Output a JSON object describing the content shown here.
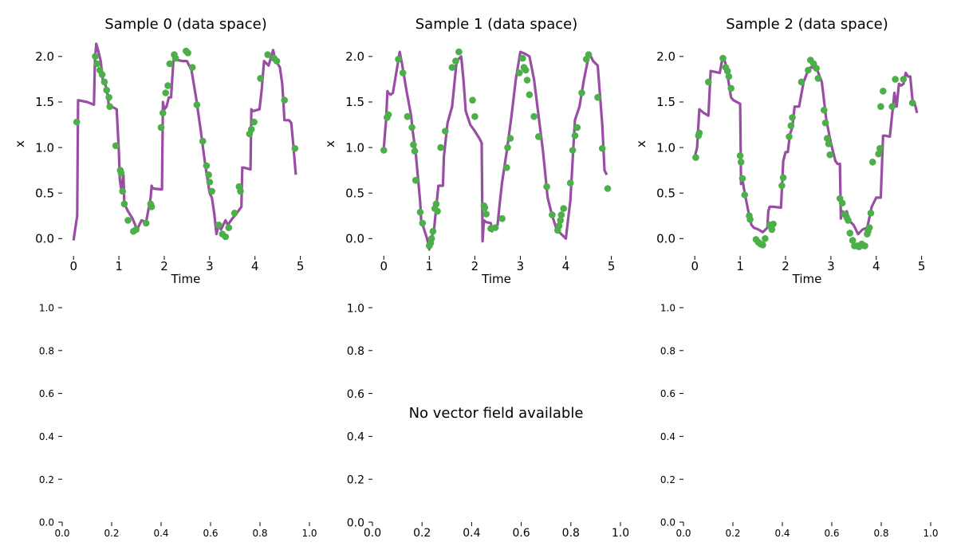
{
  "figure": {
    "no_vector_field_text": "No vector field available"
  },
  "colors": {
    "line": "#984ea3",
    "points": "#4daf4a",
    "axis": "#000000"
  },
  "chart_data": [
    {
      "type": "line",
      "title": "Sample 0 (data space)",
      "xlabel": "Time",
      "ylabel": "x",
      "xlim": [
        -0.25,
        5.2
      ],
      "ylim": [
        -0.12,
        2.2
      ],
      "xticks": [
        0,
        1,
        2,
        3,
        4,
        5
      ],
      "xtick_labels": [
        "0",
        "1",
        "2",
        "3",
        "4",
        "5"
      ],
      "yticks": [
        0,
        0.5,
        1,
        1.5,
        2
      ],
      "ytick_labels": [
        "0.0",
        "0.5",
        "1.0",
        "1.5",
        "2.0"
      ],
      "grid": false,
      "series": [
        {
          "kind": "line",
          "x": [
            0,
            0.08,
            0.1,
            0.3,
            0.45,
            0.47,
            0.5,
            0.55,
            0.6,
            0.65,
            0.7,
            0.75,
            0.78,
            0.8,
            0.95,
            1.0,
            1.02,
            1.05,
            1.1,
            1.12,
            1.2,
            1.3,
            1.4,
            1.5,
            1.6,
            1.7,
            1.72,
            1.75,
            1.95,
            1.97,
            2.0,
            2.05,
            2.1,
            2.15,
            2.2,
            2.25,
            2.3,
            2.4,
            2.5,
            2.6,
            2.7,
            2.8,
            2.9,
            3.0,
            3.05,
            3.1,
            3.15,
            3.2,
            3.25,
            3.3,
            3.35,
            3.4,
            3.5,
            3.6,
            3.7,
            3.72,
            3.75,
            3.9,
            3.92,
            3.95,
            4.1,
            4.15,
            4.2,
            4.3,
            4.4,
            4.45,
            4.5,
            4.55,
            4.6,
            4.62,
            4.65,
            4.75,
            4.8,
            4.85,
            4.9
          ],
          "y": [
            -0.02,
            0.25,
            1.52,
            1.5,
            1.47,
            1.95,
            2.14,
            2.05,
            1.95,
            1.72,
            1.7,
            1.58,
            1.45,
            1.46,
            1.42,
            0.95,
            0.65,
            0.55,
            0.7,
            0.38,
            0.3,
            0.22,
            0.1,
            0.2,
            0.18,
            0.45,
            0.58,
            0.55,
            0.54,
            1.5,
            1.42,
            1.45,
            1.55,
            1.55,
            1.95,
            1.97,
            1.96,
            1.95,
            1.95,
            1.85,
            1.55,
            1.2,
            0.82,
            0.5,
            0.45,
            0.28,
            0.05,
            0.15,
            0.1,
            0.15,
            0.2,
            0.15,
            0.22,
            0.28,
            0.35,
            0.78,
            0.78,
            0.76,
            1.42,
            1.4,
            1.42,
            1.65,
            1.95,
            1.9,
            2.07,
            1.95,
            1.92,
            1.88,
            1.7,
            1.55,
            1.3,
            1.3,
            1.27,
            1.0,
            0.7
          ]
        },
        {
          "kind": "scatter",
          "x": [
            0.07,
            0.48,
            0.52,
            0.58,
            0.63,
            0.68,
            0.73,
            0.78,
            0.8,
            0.93,
            1.03,
            1.05,
            1.08,
            1.12,
            1.2,
            1.32,
            1.38,
            1.6,
            1.7,
            1.72,
            1.93,
            1.97,
            2.03,
            2.08,
            2.12,
            2.22,
            2.25,
            2.48,
            2.52,
            2.62,
            2.72,
            2.85,
            2.93,
            2.98,
            3.0,
            3.05,
            3.2,
            3.28,
            3.35,
            3.42,
            3.55,
            3.65,
            3.68,
            3.88,
            3.92,
            3.98,
            4.12,
            4.28,
            4.42,
            4.48,
            4.65,
            4.88
          ],
          "y": [
            1.28,
            2.0,
            1.92,
            1.85,
            1.8,
            1.72,
            1.63,
            1.55,
            1.45,
            1.02,
            0.75,
            0.72,
            0.52,
            0.38,
            0.2,
            0.08,
            0.1,
            0.17,
            0.38,
            0.35,
            1.22,
            1.38,
            1.6,
            1.68,
            1.92,
            2.02,
            1.98,
            2.06,
            2.04,
            1.88,
            1.47,
            1.07,
            0.8,
            0.7,
            0.62,
            0.52,
            0.15,
            0.05,
            0.02,
            0.12,
            0.28,
            0.57,
            0.52,
            1.15,
            1.2,
            1.28,
            1.76,
            2.02,
            1.98,
            1.95,
            1.52,
            0.99
          ]
        }
      ]
    },
    {
      "type": "line",
      "title": "Sample 1 (data space)",
      "xlabel": "Time",
      "ylabel": "x",
      "xlim": [
        -0.25,
        5.2
      ],
      "ylim": [
        -0.12,
        2.2
      ],
      "xticks": [
        0,
        1,
        2,
        3,
        4,
        5
      ],
      "xtick_labels": [
        "0",
        "1",
        "2",
        "3",
        "4",
        "5"
      ],
      "yticks": [
        0,
        0.5,
        1,
        1.5,
        2
      ],
      "ytick_labels": [
        "0.0",
        "0.5",
        "1.0",
        "1.5",
        "2.0"
      ],
      "grid": false,
      "series": [
        {
          "kind": "line",
          "x": [
            0,
            0.05,
            0.08,
            0.1,
            0.15,
            0.2,
            0.35,
            0.38,
            0.4,
            0.5,
            0.6,
            0.63,
            0.7,
            0.8,
            0.82,
            0.95,
            1.0,
            1.02,
            1.05,
            1.1,
            1.2,
            1.3,
            1.32,
            1.4,
            1.5,
            1.6,
            1.7,
            1.75,
            1.8,
            1.9,
            2.0,
            2.1,
            2.15,
            2.17,
            2.2,
            2.25,
            2.35,
            2.38,
            2.4,
            2.5,
            2.55,
            2.6,
            2.7,
            2.8,
            2.9,
            3.0,
            3.1,
            3.2,
            3.3,
            3.4,
            3.5,
            3.6,
            3.7,
            3.8,
            3.9,
            4.0,
            4.1,
            4.2,
            4.3,
            4.4,
            4.5,
            4.55,
            4.6,
            4.7,
            4.8,
            4.85,
            4.9
          ],
          "y": [
            1.0,
            1.3,
            1.62,
            1.6,
            1.58,
            1.6,
            2.05,
            1.97,
            1.92,
            1.62,
            1.35,
            1.2,
            0.95,
            0.4,
            0.2,
            0.0,
            -0.12,
            0.0,
            0.02,
            0.08,
            0.58,
            0.58,
            0.9,
            1.27,
            1.45,
            1.95,
            2.0,
            1.75,
            1.4,
            1.25,
            1.18,
            1.1,
            1.05,
            -0.03,
            0.2,
            0.18,
            0.17,
            0.08,
            0.12,
            0.15,
            0.4,
            0.62,
            0.95,
            1.32,
            1.75,
            2.05,
            2.03,
            2.0,
            1.75,
            1.35,
            0.95,
            0.45,
            0.25,
            0.1,
            0.05,
            0.0,
            0.42,
            1.3,
            1.45,
            1.75,
            2.0,
            2.0,
            1.95,
            1.9,
            1.25,
            0.75,
            0.7
          ]
        },
        {
          "kind": "scatter",
          "x": [
            0.0,
            0.07,
            0.1,
            0.32,
            0.42,
            0.52,
            0.62,
            0.65,
            0.68,
            0.7,
            0.8,
            0.85,
            1.0,
            1.03,
            1.05,
            1.08,
            1.12,
            1.15,
            1.18,
            1.25,
            1.35,
            1.5,
            1.58,
            1.65,
            1.95,
            2.0,
            2.2,
            2.22,
            2.25,
            2.35,
            2.45,
            2.6,
            2.7,
            2.72,
            2.78,
            2.98,
            3.05,
            3.08,
            3.12,
            3.15,
            3.2,
            3.3,
            3.4,
            3.58,
            3.7,
            3.82,
            3.85,
            3.88,
            3.9,
            3.95,
            4.1,
            4.15,
            4.2,
            4.25,
            4.35,
            4.45,
            4.5,
            4.7,
            4.8,
            4.92
          ],
          "y": [
            0.97,
            1.33,
            1.36,
            1.97,
            1.82,
            1.34,
            1.22,
            1.03,
            0.96,
            0.64,
            0.29,
            0.17,
            -0.08,
            -0.05,
            0.0,
            0.08,
            0.33,
            0.38,
            0.3,
            1.0,
            1.18,
            1.88,
            1.95,
            2.05,
            1.52,
            1.34,
            0.36,
            0.34,
            0.27,
            0.11,
            0.12,
            0.22,
            0.78,
            1.0,
            1.1,
            1.82,
            1.98,
            1.88,
            1.85,
            1.74,
            1.58,
            1.34,
            1.12,
            0.57,
            0.26,
            0.09,
            0.14,
            0.2,
            0.26,
            0.33,
            0.61,
            0.97,
            1.13,
            1.22,
            1.6,
            1.97,
            2.02,
            1.55,
            0.99,
            0.55
          ]
        }
      ]
    },
    {
      "type": "line",
      "title": "Sample 2 (data space)",
      "xlabel": "Time",
      "ylabel": "x",
      "xlim": [
        -0.25,
        5.2
      ],
      "ylim": [
        -0.12,
        2.2
      ],
      "xticks": [
        0,
        1,
        2,
        3,
        4,
        5
      ],
      "xtick_labels": [
        "0",
        "1",
        "2",
        "3",
        "4",
        "5"
      ],
      "yticks": [
        0,
        0.5,
        1,
        1.5,
        2
      ],
      "ytick_labels": [
        "0.0",
        "0.5",
        "1.0",
        "1.5",
        "2.0"
      ],
      "grid": false,
      "series": [
        {
          "kind": "line",
          "x": [
            0.0,
            0.05,
            0.1,
            0.2,
            0.3,
            0.35,
            0.55,
            0.6,
            0.65,
            0.7,
            0.75,
            0.8,
            0.85,
            1.0,
            1.02,
            1.05,
            1.1,
            1.12,
            1.2,
            1.25,
            1.3,
            1.4,
            1.5,
            1.6,
            1.62,
            1.65,
            1.7,
            1.72,
            1.9,
            1.95,
            2.0,
            2.05,
            2.1,
            2.15,
            2.2,
            2.3,
            2.4,
            2.5,
            2.55,
            2.6,
            2.7,
            2.8,
            2.9,
            3.0,
            3.05,
            3.1,
            3.15,
            3.2,
            3.22,
            3.25,
            3.3,
            3.35,
            3.4,
            3.5,
            3.6,
            3.7,
            3.8,
            3.9,
            3.95,
            4.0,
            4.05,
            4.1,
            4.15,
            4.2,
            4.3,
            4.4,
            4.45,
            4.5,
            4.55,
            4.6,
            4.65,
            4.7,
            4.75,
            4.8,
            4.85,
            4.9
          ],
          "y": [
            0.9,
            1.0,
            1.42,
            1.38,
            1.35,
            1.84,
            1.82,
            1.95,
            1.97,
            1.88,
            1.7,
            1.55,
            1.52,
            1.48,
            0.6,
            0.65,
            0.5,
            0.45,
            0.25,
            0.15,
            0.12,
            0.1,
            0.07,
            0.12,
            0.3,
            0.35,
            0.35,
            0.35,
            0.34,
            0.85,
            0.95,
            0.95,
            1.15,
            1.22,
            1.45,
            1.45,
            1.72,
            1.85,
            1.88,
            1.88,
            1.85,
            1.72,
            1.3,
            1.05,
            0.95,
            0.85,
            0.82,
            0.82,
            0.22,
            0.3,
            0.25,
            0.3,
            0.2,
            0.15,
            0.05,
            0.1,
            0.12,
            0.35,
            0.4,
            0.45,
            0.45,
            0.45,
            1.13,
            1.13,
            1.12,
            1.6,
            1.45,
            1.7,
            1.68,
            1.7,
            1.82,
            1.78,
            1.78,
            1.52,
            1.48,
            1.38
          ]
        },
        {
          "kind": "scatter",
          "x": [
            0.02,
            0.08,
            0.1,
            0.3,
            0.62,
            0.68,
            0.72,
            0.75,
            0.8,
            1.0,
            1.02,
            1.05,
            1.1,
            1.2,
            1.22,
            1.35,
            1.4,
            1.45,
            1.5,
            1.55,
            1.65,
            1.7,
            1.73,
            1.92,
            1.95,
            2.08,
            2.12,
            2.15,
            2.35,
            2.5,
            2.55,
            2.62,
            2.68,
            2.72,
            2.85,
            2.88,
            2.92,
            2.95,
            2.98,
            3.2,
            3.25,
            3.3,
            3.35,
            3.38,
            3.42,
            3.48,
            3.52,
            3.58,
            3.62,
            3.65,
            3.68,
            3.75,
            3.8,
            3.82,
            3.85,
            3.88,
            3.92,
            4.05,
            4.08,
            4.1,
            4.15,
            4.35,
            4.42,
            4.6,
            4.8
          ],
          "y": [
            0.89,
            1.13,
            1.16,
            1.72,
            1.98,
            1.88,
            1.84,
            1.78,
            1.65,
            0.91,
            0.84,
            0.66,
            0.48,
            0.25,
            0.21,
            -0.01,
            -0.04,
            -0.06,
            -0.07,
            0.0,
            0.15,
            0.1,
            0.16,
            0.58,
            0.67,
            1.12,
            1.24,
            1.33,
            1.72,
            1.85,
            1.96,
            1.92,
            1.87,
            1.76,
            1.41,
            1.27,
            1.1,
            1.04,
            0.92,
            0.44,
            0.39,
            0.27,
            0.23,
            0.2,
            0.06,
            -0.02,
            -0.08,
            -0.08,
            -0.09,
            -0.08,
            -0.06,
            -0.08,
            0.05,
            0.08,
            0.12,
            0.28,
            0.84,
            0.93,
            0.99,
            1.45,
            1.62,
            1.45,
            1.75,
            1.75,
            1.49
          ]
        }
      ]
    },
    {
      "type": "empty",
      "xlim": [
        0,
        1
      ],
      "ylim": [
        0,
        1
      ],
      "xticks": [
        0,
        0.2,
        0.4,
        0.6,
        0.8,
        1.0
      ],
      "xtick_labels": [
        "0.0",
        "0.2",
        "0.4",
        "0.6",
        "0.8",
        "1.0"
      ],
      "yticks": [
        0,
        0.2,
        0.4,
        0.6,
        0.8,
        1.0
      ],
      "ytick_labels": [
        "0.0",
        "0.2",
        "0.4",
        "0.6",
        "0.8",
        "1.0"
      ],
      "grid": false
    },
    {
      "type": "empty",
      "xlim": [
        0,
        1
      ],
      "ylim": [
        0,
        1
      ],
      "xticks": [
        0,
        0.2,
        0.4,
        0.6,
        0.8,
        1.0
      ],
      "xtick_labels": [
        "0.0",
        "0.2",
        "0.4",
        "0.6",
        "0.8",
        "1.0"
      ],
      "yticks": [
        0,
        0.2,
        0.4,
        0.6,
        0.8,
        1.0
      ],
      "ytick_labels": [
        "0.0",
        "0.2",
        "0.4",
        "0.6",
        "0.8",
        "1.0"
      ],
      "grid": false
    },
    {
      "type": "empty",
      "xlim": [
        0,
        1
      ],
      "ylim": [
        0,
        1
      ],
      "xticks": [
        0,
        0.2,
        0.4,
        0.6,
        0.8,
        1.0
      ],
      "xtick_labels": [
        "0.0",
        "0.2",
        "0.4",
        "0.6",
        "0.8",
        "1.0"
      ],
      "yticks": [
        0,
        0.2,
        0.4,
        0.6,
        0.8,
        1.0
      ],
      "ytick_labels": [
        "0.0",
        "0.2",
        "0.4",
        "0.6",
        "0.8",
        "1.0"
      ],
      "grid": false
    }
  ]
}
